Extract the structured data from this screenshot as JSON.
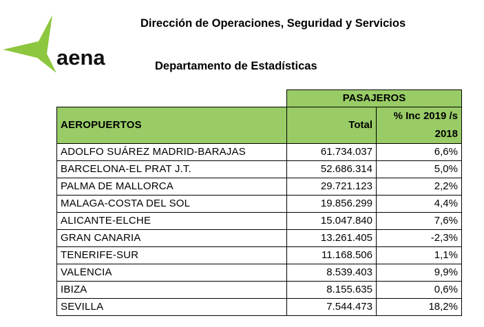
{
  "logo": {
    "text": "aena",
    "color": "#8dc63f"
  },
  "header": {
    "title": "Dirección de Operaciones, Seguridad y Servicios",
    "subtitle": "Departamento de Estadísticas"
  },
  "table": {
    "group_header": "PASAJEROS",
    "col_airports": "AEROPUERTOS",
    "col_total": "Total",
    "col_pct_line1": "% Inc 2019 /s",
    "col_pct_line2": "2018",
    "rows": [
      {
        "airport": "ADOLFO SUÁREZ MADRID-BARAJAS",
        "total": "61.734.037",
        "pct": "6,6%"
      },
      {
        "airport": "BARCELONA-EL PRAT J.T.",
        "total": "52.686.314",
        "pct": "5,0%"
      },
      {
        "airport": "PALMA DE MALLORCA",
        "total": "29.721.123",
        "pct": "2,2%"
      },
      {
        "airport": "MALAGA-COSTA DEL SOL",
        "total": "19.856.299",
        "pct": "4,4%"
      },
      {
        "airport": "ALICANTE-ELCHE",
        "total": "15.047.840",
        "pct": "7,6%"
      },
      {
        "airport": "GRAN CANARIA",
        "total": "13.261.405",
        "pct": "-2,3%"
      },
      {
        "airport": "TENERIFE-SUR",
        "total": "11.168.506",
        "pct": "1,1%"
      },
      {
        "airport": "VALENCIA",
        "total": "8.539.403",
        "pct": "9,9%"
      },
      {
        "airport": "IBIZA",
        "total": "8.155.635",
        "pct": "0,6%"
      },
      {
        "airport": "SEVILLA",
        "total": "7.544.473",
        "pct": "18,2%"
      }
    ]
  }
}
